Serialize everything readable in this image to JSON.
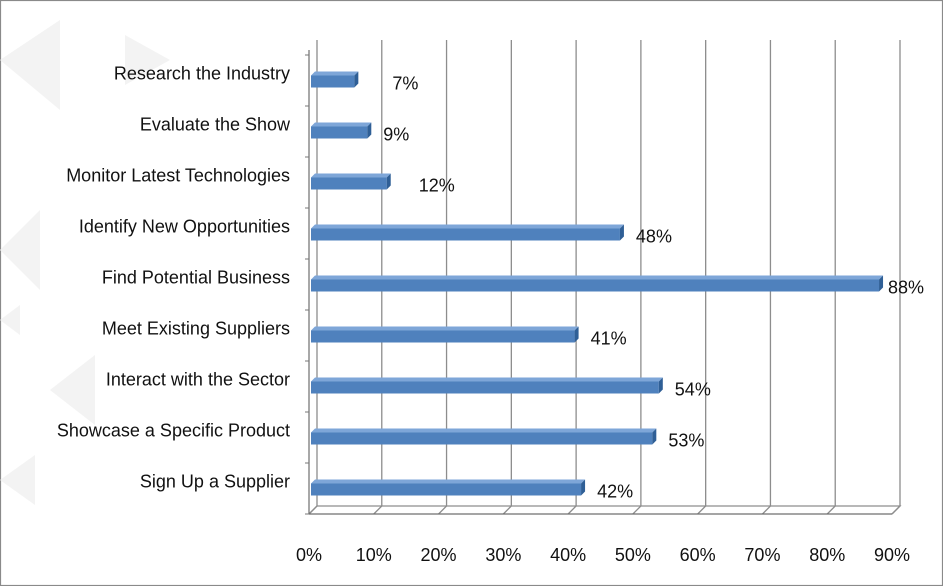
{
  "chart_data": {
    "type": "bar",
    "orientation": "horizontal",
    "categories": [
      "Research the Industry",
      "Evaluate the Show",
      "Monitor Latest Technologies",
      "Identify New Opportunities",
      "Find Potential Business",
      "Meet Existing Suppliers",
      "Interact with the Sector",
      "Showcase a Specific Product",
      "Sign Up a Supplier"
    ],
    "values": [
      7,
      9,
      12,
      48,
      88,
      41,
      54,
      53,
      42
    ],
    "data_labels": [
      "7%",
      "9%",
      "12%",
      "48%",
      "88%",
      "41%",
      "54%",
      "53%",
      "42%"
    ],
    "x_ticks": [
      "0%",
      "10%",
      "20%",
      "30%",
      "40%",
      "50%",
      "60%",
      "70%",
      "80%",
      "90%"
    ],
    "xlim": [
      0,
      90
    ],
    "grid": true,
    "legend": false,
    "title": "",
    "xlabel": "",
    "ylabel": "",
    "colors": {
      "bar_fill": "#4f81bd",
      "bar_top": "#7ea6d8",
      "bar_side": "#2f5f96",
      "grid": "#8d8d8d",
      "frame": "#8a8a8a",
      "text": "#111111",
      "decor": "#f3f3f3"
    }
  }
}
